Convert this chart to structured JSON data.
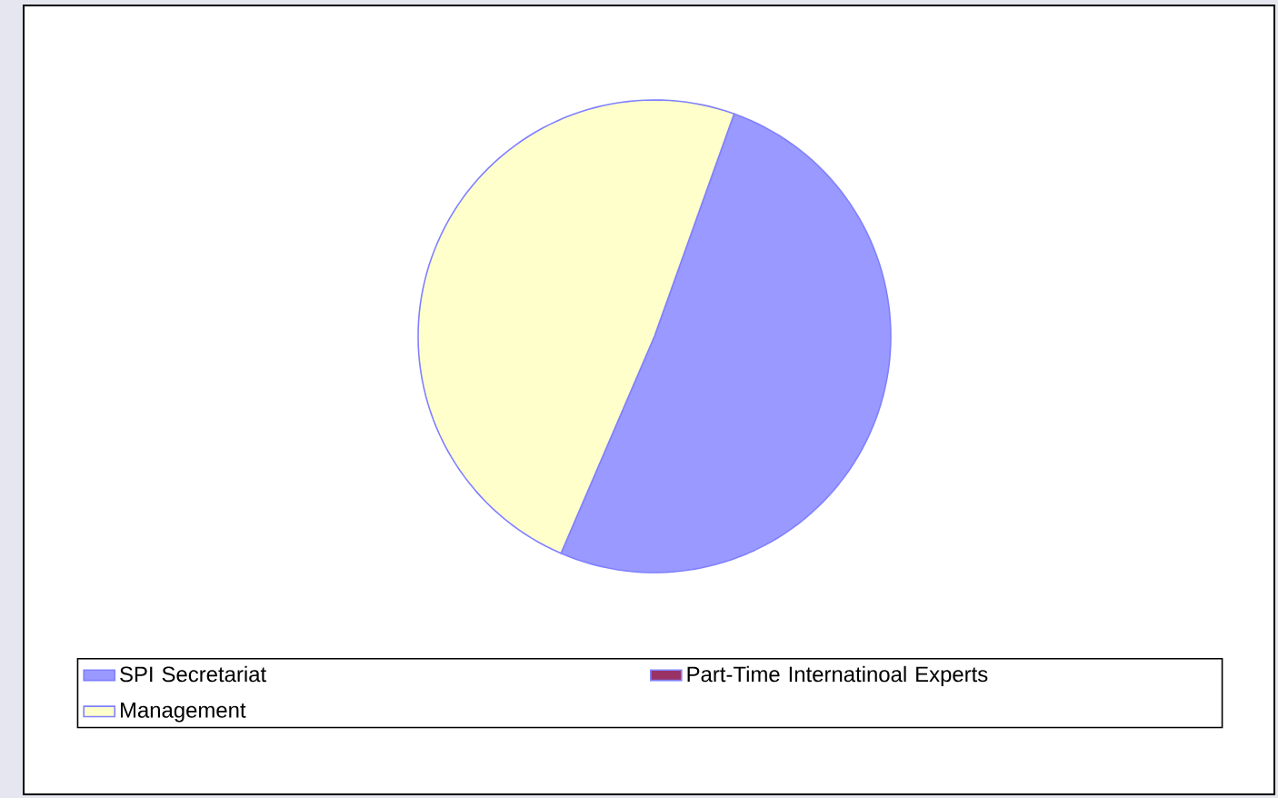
{
  "chart_data": {
    "type": "pie",
    "categories": [
      "SPI Secretariat",
      "Part-Time Internatinoal Experts",
      "Management"
    ],
    "values": [
      51,
      0,
      49
    ],
    "colors": [
      "#9999ff",
      "#993366",
      "#ffffcc"
    ],
    "legend": "bottom"
  }
}
